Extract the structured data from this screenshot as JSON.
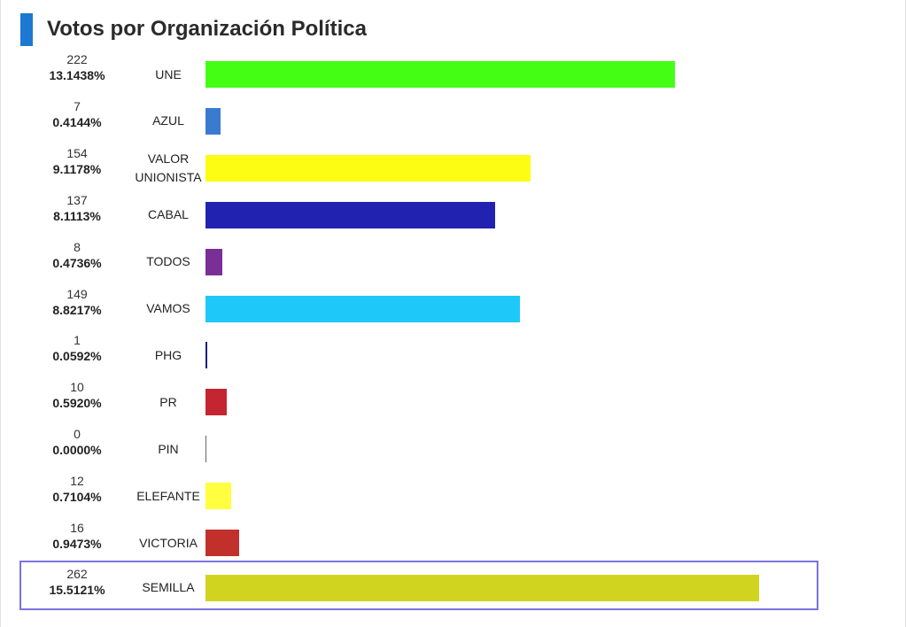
{
  "chart_data": {
    "type": "bar",
    "orientation": "horizontal",
    "title": "Votos por Organización Política",
    "xlim": [
      0,
      262
    ],
    "grid": false,
    "categories": [
      "UNE",
      "AZUL",
      "VALOR UNIONISTA",
      "CABAL",
      "TODOS",
      "VAMOS",
      "PHG",
      "PR",
      "PIN",
      "ELEFANTE",
      "VICTORIA",
      "SEMILLA"
    ],
    "series": [
      {
        "values": [
          222,
          7,
          154,
          137,
          8,
          149,
          1,
          10,
          0,
          12,
          16,
          262
        ]
      }
    ],
    "items": [
      {
        "label_lines": [
          "UNE"
        ],
        "count": "222",
        "percent": "13.1438%",
        "value": 222,
        "color": "#44ff14"
      },
      {
        "label_lines": [
          "AZUL"
        ],
        "count": "7",
        "percent": "0.4144%",
        "value": 7,
        "color": "#3a7bd0"
      },
      {
        "label_lines": [
          "VALOR",
          "UNIONISTA"
        ],
        "count": "154",
        "percent": "9.1178%",
        "value": 154,
        "color": "#fdfd14"
      },
      {
        "label_lines": [
          "CABAL"
        ],
        "count": "137",
        "percent": "8.1113%",
        "value": 137,
        "color": "#2222b0"
      },
      {
        "label_lines": [
          "TODOS"
        ],
        "count": "8",
        "percent": "0.4736%",
        "value": 8,
        "color": "#7a2f97"
      },
      {
        "label_lines": [
          "VAMOS"
        ],
        "count": "149",
        "percent": "8.8217%",
        "value": 149,
        "color": "#1ec8f8"
      },
      {
        "label_lines": [
          "PHG"
        ],
        "count": "1",
        "percent": "0.0592%",
        "value": 1,
        "color": "#10207a"
      },
      {
        "label_lines": [
          "PR"
        ],
        "count": "10",
        "percent": "0.5920%",
        "value": 10,
        "color": "#c42531"
      },
      {
        "label_lines": [
          "PIN"
        ],
        "count": "0",
        "percent": "0.0000%",
        "value": 0,
        "color": "#666666"
      },
      {
        "label_lines": [
          "ELEFANTE"
        ],
        "count": "12",
        "percent": "0.7104%",
        "value": 12,
        "color": "#ffff40"
      },
      {
        "label_lines": [
          "VICTORIA"
        ],
        "count": "16",
        "percent": "0.9473%",
        "value": 16,
        "color": "#c2302c"
      },
      {
        "label_lines": [
          "SEMILLA"
        ],
        "count": "262",
        "percent": "15.5121%",
        "value": 262,
        "color": "#d0d41e",
        "highlighted": true
      }
    ]
  },
  "colors": {
    "title_accent": "#1d78d2",
    "highlight_border": "#7b72e0"
  }
}
